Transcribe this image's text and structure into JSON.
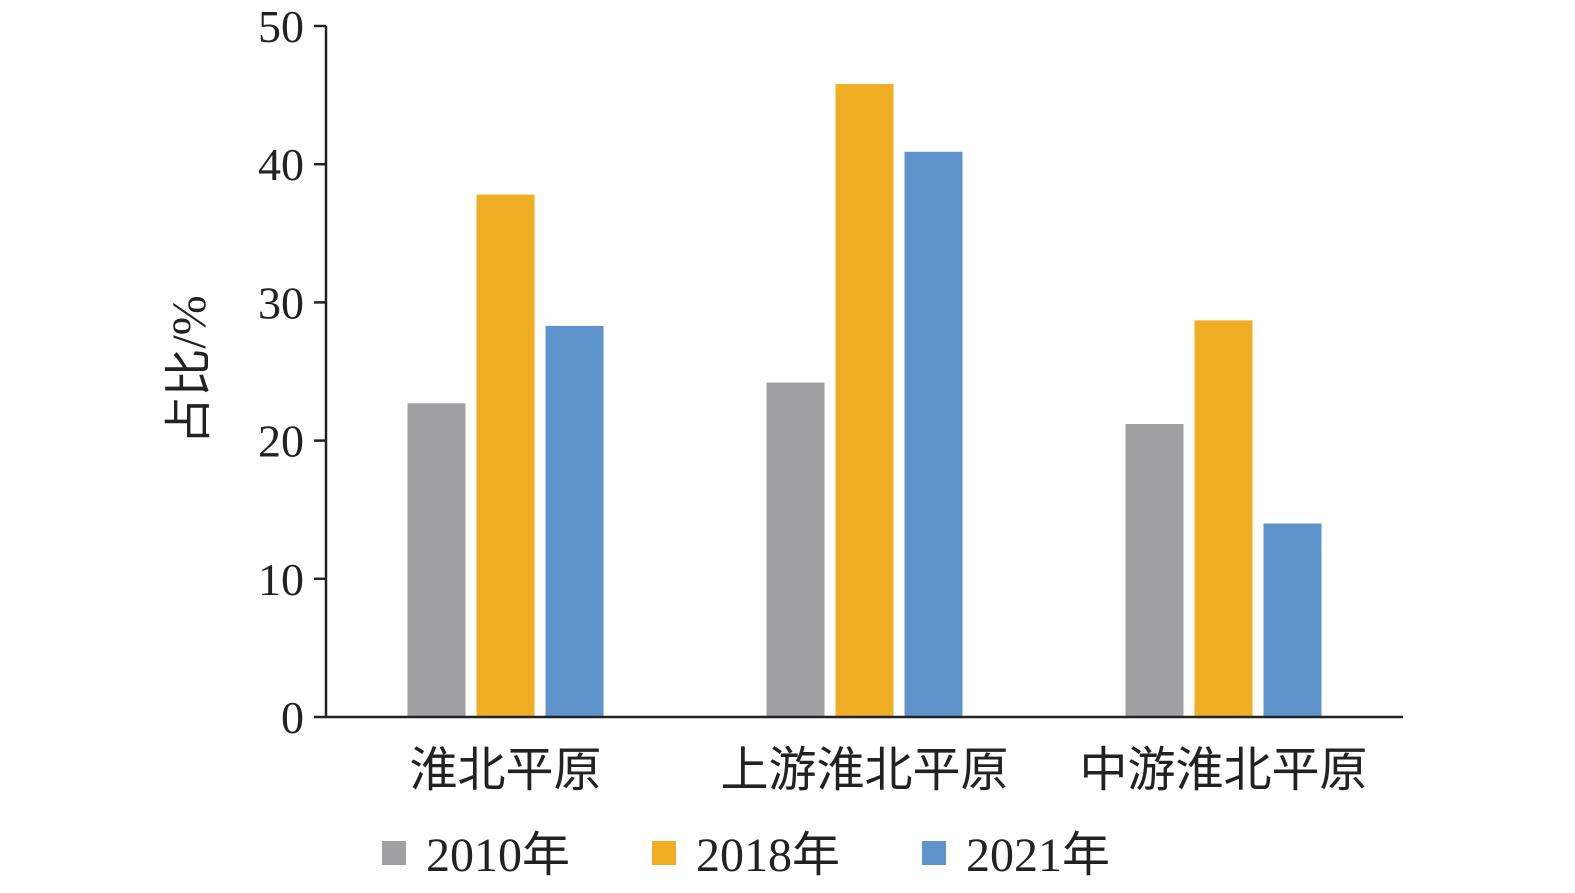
{
  "chart_data": {
    "type": "bar",
    "title": "",
    "xlabel": "",
    "ylabel": "占比/%",
    "ylim": [
      0,
      50
    ],
    "yticks": [
      0,
      10,
      20,
      30,
      40,
      50
    ],
    "grid": false,
    "legend_position": "bottom",
    "categories": [
      "淮北平原",
      "上游淮北平原",
      "中游淮北平原"
    ],
    "series": [
      {
        "name": "2010年",
        "color": "#A0A0A2",
        "values": [
          22.7,
          24.2,
          21.2
        ]
      },
      {
        "name": "2018年",
        "color": "#F0AE24",
        "values": [
          37.8,
          45.8,
          28.7
        ]
      },
      {
        "name": "2021年",
        "color": "#5F93CC",
        "values": [
          28.3,
          40.9,
          14.0
        ]
      }
    ]
  }
}
